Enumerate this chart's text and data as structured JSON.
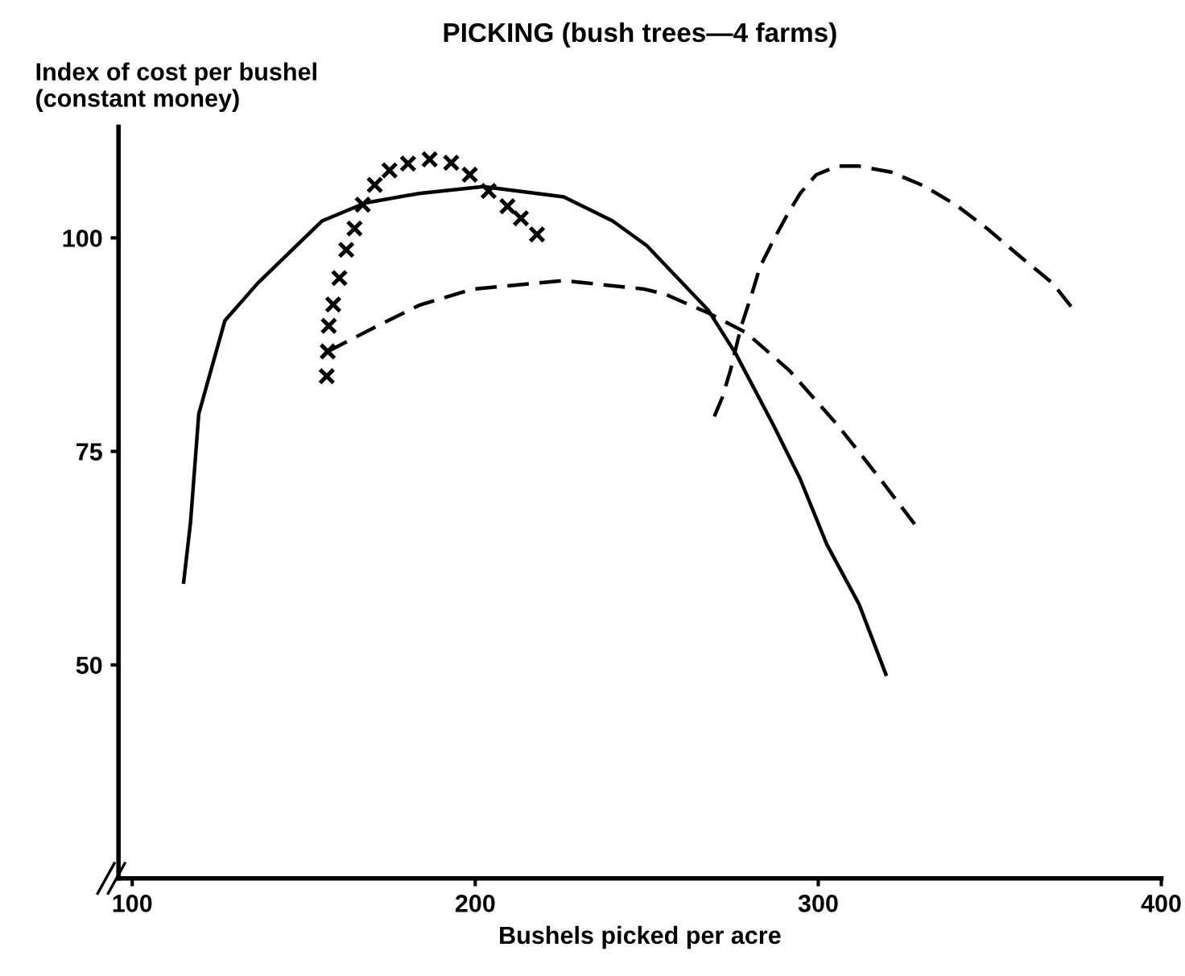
{
  "chart_data": {
    "type": "line",
    "title": "PICKING (bush trees—4 farms)",
    "xlabel": "Bushels picked per acre",
    "ylabel": "Index of cost per bushel\n(constant money)",
    "xlim": [
      96,
      400
    ],
    "ylim": [
      25,
      113
    ],
    "xticks": [
      100,
      200,
      300,
      400
    ],
    "yticks": [
      50,
      75,
      100
    ],
    "grid": false,
    "legend": false,
    "series": [
      {
        "color": "#000000",
        "line_style": "solid",
        "marker": "none",
        "x": [
          115,
          117,
          119.4,
          127,
          136.6,
          155.4,
          168,
          183.6,
          202.3,
          225.8,
          240,
          250,
          268,
          276,
          286.9,
          294.7,
          302.5,
          311.9,
          319.7
        ],
        "values": [
          59.7,
          66.7,
          79.4,
          90.3,
          94.7,
          102,
          104.1,
          105.2,
          106,
          104.8,
          102,
          99.1,
          91.5,
          86.4,
          78.1,
          71.8,
          64.1,
          57.1,
          48.9
        ]
      },
      {
        "color": "#000000",
        "line_style": "dashed",
        "marker": "none",
        "x": [
          157,
          171,
          183.6,
          199.2,
          225.8,
          249.3,
          255.4,
          268,
          279,
          291.5,
          305.6,
          318,
          329
        ],
        "values": [
          86.7,
          89.6,
          92.1,
          94,
          95,
          94,
          93.4,
          91.2,
          88.9,
          84.5,
          78.1,
          71.8,
          66
        ]
      },
      {
        "type": "scatter",
        "color": "#000000",
        "marker": "cross",
        "x": [
          156.7,
          157,
          157.3,
          158.6,
          160.4,
          162.4,
          164.8,
          167.2,
          170.7,
          175,
          180.4,
          186.7,
          193,
          198.4,
          203.9,
          209.4,
          213.3,
          218
        ],
        "values": [
          83.8,
          86.7,
          89.7,
          92.2,
          95.3,
          98.6,
          101.1,
          103.9,
          106.2,
          107.9,
          108.7,
          109.2,
          108.8,
          107.4,
          105.5,
          103.7,
          102.3,
          100.4
        ]
      },
      {
        "color": "#000000",
        "line_style": "dashed",
        "marker": "none",
        "x": [
          269.7,
          272,
          274.4,
          277.5,
          280.6,
          283,
          286.9,
          290.8,
          294.7,
          299.4,
          305.6,
          311.9,
          321.3,
          330.7,
          340,
          349.5,
          358.9,
          368.3,
          374.6
        ],
        "values": [
          79.1,
          81.3,
          84.5,
          89.6,
          93.4,
          96.6,
          99.7,
          102.6,
          105.2,
          107.4,
          108.4,
          108.4,
          107.7,
          106.1,
          103.9,
          101,
          97.8,
          94.7,
          91.5
        ]
      }
    ]
  }
}
